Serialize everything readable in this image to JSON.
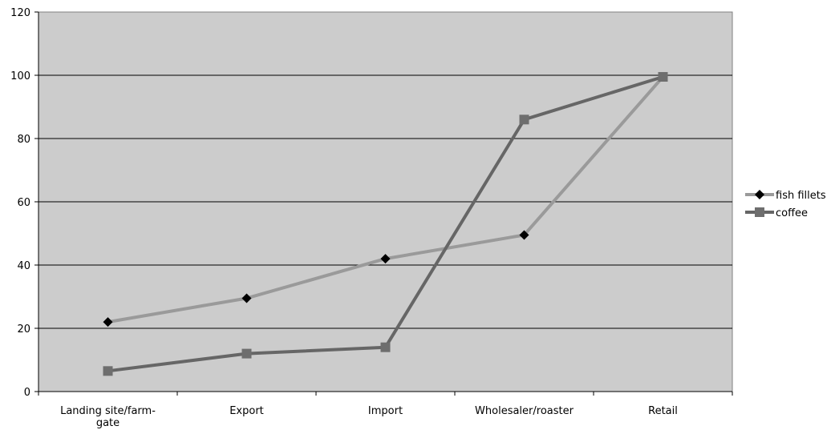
{
  "chart_data": {
    "type": "line",
    "categories": [
      "Landing site/farm-gate",
      "Export",
      "Import",
      "Wholesaler/roaster",
      "Retail"
    ],
    "category_lines": [
      [
        "Landing site/farm-",
        "gate"
      ],
      [
        "Export"
      ],
      [
        "Import"
      ],
      [
        "Wholesaler/roaster"
      ],
      [
        "Retail"
      ]
    ],
    "series": [
      {
        "name": "fish fillets",
        "values": [
          22,
          29.5,
          42,
          49.5,
          99.5
        ],
        "color": "#9a9a9a",
        "marker": "diamond",
        "marker_color": "#000000"
      },
      {
        "name": "coffee",
        "values": [
          6.5,
          12,
          14,
          86,
          99.5
        ],
        "color": "#666666",
        "marker": "square",
        "marker_color": "#6e6e6e"
      }
    ],
    "ylim": [
      0,
      120
    ],
    "yticks": [
      0,
      20,
      40,
      60,
      80,
      100,
      120
    ],
    "grid": true,
    "legend": "right",
    "plot_background": "#cccccc",
    "title": "",
    "xlabel": "",
    "ylabel": ""
  }
}
